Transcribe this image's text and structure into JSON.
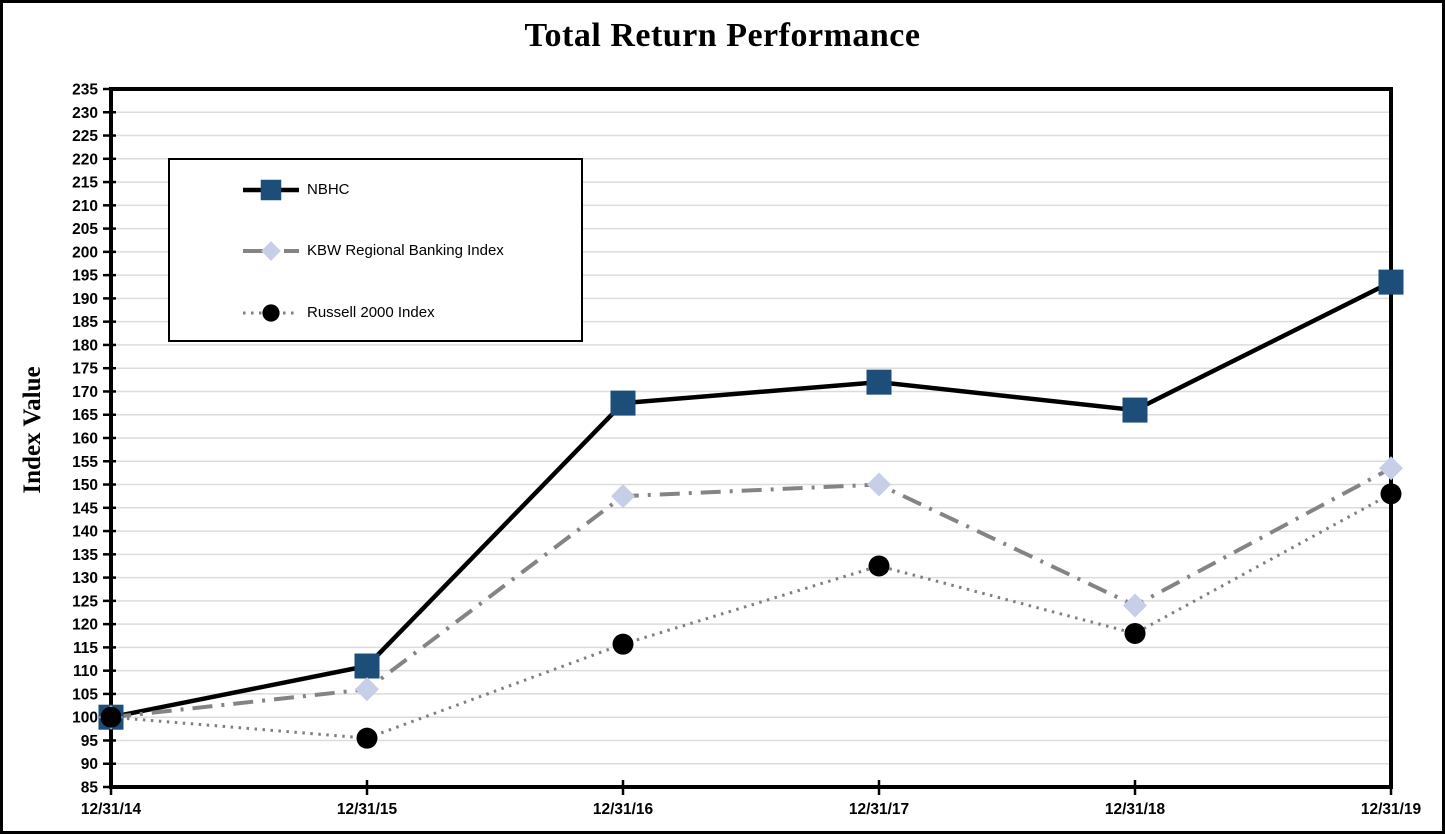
{
  "window": {
    "background": "#ffffff",
    "border_color": "#000000"
  },
  "chart_data": {
    "type": "line",
    "title": "Total Return Performance",
    "xlabel": "",
    "ylabel": "Index Value",
    "categories": [
      "12/31/14",
      "12/31/15",
      "12/31/16",
      "12/31/17",
      "12/31/18",
      "12/31/19"
    ],
    "ylim": [
      85,
      235
    ],
    "ytick_step": 5,
    "grid": "horizontal-only",
    "gridline_color": "#dcdcdc",
    "axis_color": "#000000",
    "legend_position": "upper-left-inside",
    "series": [
      {
        "name": "NBHC",
        "values": [
          100,
          111,
          167.5,
          172,
          166,
          193.5
        ],
        "line_color": "#000000",
        "line_style": "solid",
        "marker": "square",
        "marker_color": "#1d4e79"
      },
      {
        "name": "KBW Regional Banking Index",
        "values": [
          100,
          106,
          147.5,
          150,
          124,
          153.5
        ],
        "line_color": "#848484",
        "line_style": "dash-dot",
        "marker": "diamond",
        "marker_color": "#c7cfe8"
      },
      {
        "name": "Russell 2000 Index",
        "values": [
          100,
          95.5,
          115.7,
          132.5,
          118,
          148
        ],
        "line_color": "#7f7f7f",
        "line_style": "dotted",
        "marker": "circle",
        "marker_color": "#000000"
      }
    ]
  }
}
